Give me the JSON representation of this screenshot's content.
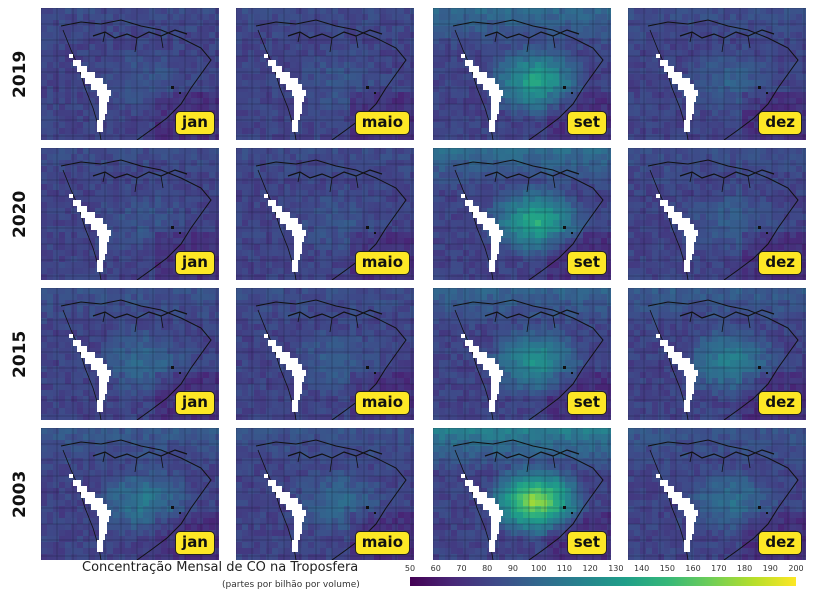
{
  "rows": [
    {
      "year": "2019",
      "panels": [
        {
          "month": "jan",
          "intensity": 0.1
        },
        {
          "month": "maio",
          "intensity": 0.1
        },
        {
          "month": "set",
          "intensity": 0.55
        },
        {
          "month": "dez",
          "intensity": 0.15
        }
      ]
    },
    {
      "year": "2020",
      "panels": [
        {
          "month": "jan",
          "intensity": 0.1
        },
        {
          "month": "maio",
          "intensity": 0.1
        },
        {
          "month": "set",
          "intensity": 0.6
        },
        {
          "month": "dez",
          "intensity": 0.15
        }
      ]
    },
    {
      "year": "2015",
      "panels": [
        {
          "month": "jan",
          "intensity": 0.2
        },
        {
          "month": "maio",
          "intensity": 0.15
        },
        {
          "month": "set",
          "intensity": 0.45
        },
        {
          "month": "dez",
          "intensity": 0.35
        }
      ]
    },
    {
      "year": "2003",
      "panels": [
        {
          "month": "jan",
          "intensity": 0.3
        },
        {
          "month": "maio",
          "intensity": 0.2
        },
        {
          "month": "set",
          "intensity": 0.9
        },
        {
          "month": "dez",
          "intensity": 0.25
        }
      ]
    }
  ],
  "caption": {
    "title": "Concentração Mensal de CO na Troposfera",
    "units": "(partes por bilhão por volume)"
  },
  "colorbar": {
    "ticks": [
      "50",
      "60",
      "70",
      "80",
      "90",
      "100",
      "110",
      "120",
      "130",
      "140",
      "150",
      "160",
      "170",
      "180",
      "190",
      "200"
    ],
    "colors": [
      "#440154",
      "#482878",
      "#3e4a89",
      "#31688e",
      "#26828e",
      "#1f9e89",
      "#35b779",
      "#6ece58",
      "#b5de2b",
      "#fde725"
    ]
  }
}
